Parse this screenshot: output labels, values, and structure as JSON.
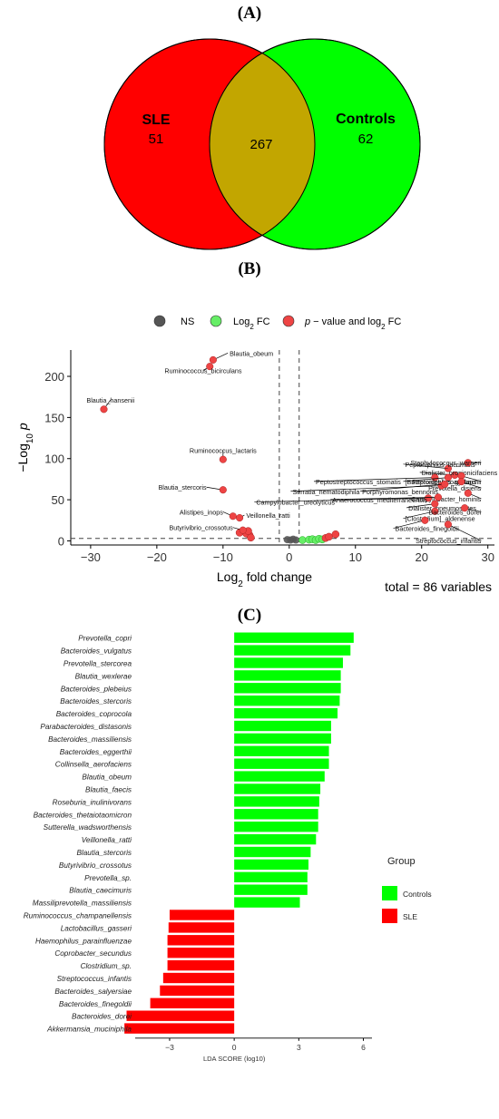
{
  "panels": {
    "a": "(A)",
    "b": "(B)",
    "c": "(C)"
  },
  "chart_data": [
    {
      "type": "venn",
      "sets": [
        {
          "name": "SLE",
          "unique": 51,
          "color": "#ff0000"
        },
        {
          "name": "Controls",
          "unique": 62,
          "color": "#00ff00"
        }
      ],
      "intersection": 267,
      "overlap_color": "#c2a600"
    },
    {
      "type": "scatter",
      "subtype": "volcano",
      "xlabel": "Log2 fold change",
      "ylabel": "−Log10 p",
      "xlim": [
        -33,
        31
      ],
      "ylim": [
        -5,
        232
      ],
      "xticks": [
        -30,
        -20,
        -10,
        0,
        10,
        20,
        30
      ],
      "yticks": [
        0,
        50,
        100,
        150,
        200
      ],
      "fc_cutoffs": [
        -1.5,
        1.5
      ],
      "p_cutoff": 3,
      "legend": [
        {
          "label": "NS",
          "color": "#555555"
        },
        {
          "label": "Log2 FC",
          "color": "#66ee66"
        },
        {
          "label": "p − value and log2 FC",
          "color": "#ee4444"
        }
      ],
      "caption": "total = 86 variables",
      "labeled_points": [
        {
          "name": "Blautia_obeum",
          "x": -11.5,
          "y": 220
        },
        {
          "name": "Ruminococcus_bicirculans",
          "x": -12,
          "y": 212
        },
        {
          "name": "Blautia_hansenii",
          "x": -28,
          "y": 160
        },
        {
          "name": "Ruminococcus_lactaris",
          "x": -10,
          "y": 99
        },
        {
          "name": "Blautia_stercoris",
          "x": -10,
          "y": 62
        },
        {
          "name": "Alistipes_inops",
          "x": -8.5,
          "y": 30
        },
        {
          "name": "Veillonella_ratti",
          "x": -7.5,
          "y": 28
        },
        {
          "name": "Butyrivibrio_crossotus",
          "x": -7,
          "y": 13
        },
        {
          "name": "Peptoniphilus_lacrimalis",
          "x": 24,
          "y": 88
        },
        {
          "name": "Staphylococcus_warneri",
          "x": 27,
          "y": 95
        },
        {
          "name": "Dialister_propionicifaciens",
          "x": 25,
          "y": 80
        },
        {
          "name": "Peptostreptococcus_stomatis",
          "x": 22,
          "y": 77
        },
        {
          "name": "[Bacteroides]_coagulans",
          "x": 24,
          "y": 77
        },
        {
          "name": "Peptoniphilus_gorbachii",
          "x": 26,
          "y": 79
        },
        {
          "name": "Prevotella_disiens",
          "x": 26,
          "y": 72
        },
        {
          "name": "Serratia_nematodiphila",
          "x": 23,
          "y": 67
        },
        {
          "name": "Porphyromonas_bennonis",
          "x": 23.5,
          "y": 69
        },
        {
          "name": "Campylobacter_hominis",
          "x": 27,
          "y": 58
        },
        {
          "name": "Campylobacter_ureolyticus",
          "x": 21,
          "y": 52
        },
        {
          "name": "Anaerococcus_mediterraneensis",
          "x": 22.5,
          "y": 53
        },
        {
          "name": "Dialister_pneumosintes",
          "x": 22,
          "y": 45
        },
        {
          "name": "[Clostridium]_aldenense",
          "x": 22,
          "y": 36
        },
        {
          "name": "Bacteroides_dorei",
          "x": 26.5,
          "y": 40
        },
        {
          "name": "Bacteroides_finegoldii",
          "x": 20.5,
          "y": 25
        },
        {
          "name": "Streptococcus_infantis",
          "x": 24,
          "y": 20
        }
      ]
    },
    {
      "type": "bar",
      "orientation": "horizontal",
      "xlabel": "LDA SCORE (log10)",
      "xlim": [
        -4.6,
        6.4
      ],
      "xticks": [
        -3,
        0,
        3,
        6
      ],
      "legend_title": "Group",
      "groups": [
        {
          "name": "Controls",
          "color": "#00ff00"
        },
        {
          "name": "SLE",
          "color": "#ff0000"
        }
      ],
      "categories": [
        "Prevotella_copri",
        "Bacteroides_vulgatus",
        "Prevotella_stercorea",
        "Blautia_wexlerae",
        "Bacteroides_plebeius",
        "Bacteroides_stercoris",
        "Bacteroides_coprocola",
        "Parabacteroides_distasonis",
        "Bacteroides_massiliensis",
        "Bacteroides_eggerthii",
        "Collinsella_aerofaciens",
        "Blautia_obeum",
        "Blautia_faecis",
        "Roseburia_inulinivorans",
        "Bacteroides_thetaiotaomicron",
        "Sutterella_wadsworthensis",
        "Veillonella_ratti",
        "Blautia_stercoris",
        "Butyrivibrio_crossotus",
        "Prevotella_sp.",
        "Blautia_caecimuris",
        "Massiliprevotella_massiliensis",
        "Ruminococcus_champanellensis",
        "Lactobacillus_gasseri",
        "Haemophilus_parainfluenzae",
        "Coprobacter_secundus",
        "Clostridium_sp.",
        "Streptococcus_infantis",
        "Bacteroides_salyersiae",
        "Bacteroides_finegoldii",
        "Bacteroides_dorei",
        "Akkermansia_muciniphila"
      ],
      "values": [
        5.55,
        5.4,
        5.05,
        4.95,
        4.95,
        4.9,
        4.8,
        4.5,
        4.5,
        4.4,
        4.4,
        4.2,
        4.0,
        3.95,
        3.9,
        3.9,
        3.8,
        3.55,
        3.45,
        3.4,
        3.4,
        3.05,
        -3.0,
        -3.05,
        -3.1,
        -3.1,
        -3.1,
        -3.3,
        -3.45,
        -3.9,
        -5.0,
        -5.1
      ],
      "group_of": [
        "Controls",
        "Controls",
        "Controls",
        "Controls",
        "Controls",
        "Controls",
        "Controls",
        "Controls",
        "Controls",
        "Controls",
        "Controls",
        "Controls",
        "Controls",
        "Controls",
        "Controls",
        "Controls",
        "Controls",
        "Controls",
        "Controls",
        "Controls",
        "Controls",
        "Controls",
        "SLE",
        "SLE",
        "SLE",
        "SLE",
        "SLE",
        "SLE",
        "SLE",
        "SLE",
        "SLE",
        "SLE"
      ]
    }
  ]
}
